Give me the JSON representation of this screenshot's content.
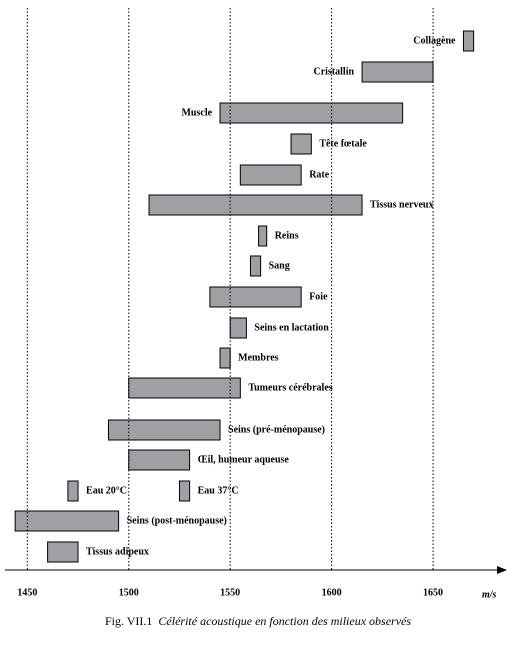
{
  "chart_data": {
    "type": "range_bar",
    "categories": [
      "Collagène",
      "Cristallin",
      "Muscle",
      "Tête fœtale",
      "Rate",
      "Tissus nerveux",
      "Reins",
      "Sang",
      "Foie",
      "Seins en lactation",
      "Membres",
      "Tumeurs cérébrales",
      "Seins (pré-ménopause)",
      "Œil, humeur aqueuse",
      "Eau 20°C",
      "Eau 37°C",
      "Seins (post-ménopause)",
      "Tissus adipeux"
    ],
    "ranges": [
      [
        1665,
        1670
      ],
      [
        1615,
        1650
      ],
      [
        1545,
        1635
      ],
      [
        1580,
        1590
      ],
      [
        1555,
        1585
      ],
      [
        1510,
        1615
      ],
      [
        1564,
        1568
      ],
      [
        1560,
        1565
      ],
      [
        1540,
        1585
      ],
      [
        1550,
        1558
      ],
      [
        1545,
        1550
      ],
      [
        1500,
        1555
      ],
      [
        1490,
        1545
      ],
      [
        1500,
        1530
      ],
      [
        1470,
        1475
      ],
      [
        1525,
        1530
      ],
      [
        1444,
        1495
      ],
      [
        1460,
        1475
      ]
    ],
    "color": "#a0a0a4",
    "xlim": [
      1439,
      1683
    ],
    "xticks": [
      1450,
      1500,
      1550,
      1600,
      1650
    ],
    "x_unit": "m/s",
    "grid": true,
    "caption_number": "Fig. VII.1",
    "caption_text": "Célérité acoustique en fonction des milieux observés"
  }
}
